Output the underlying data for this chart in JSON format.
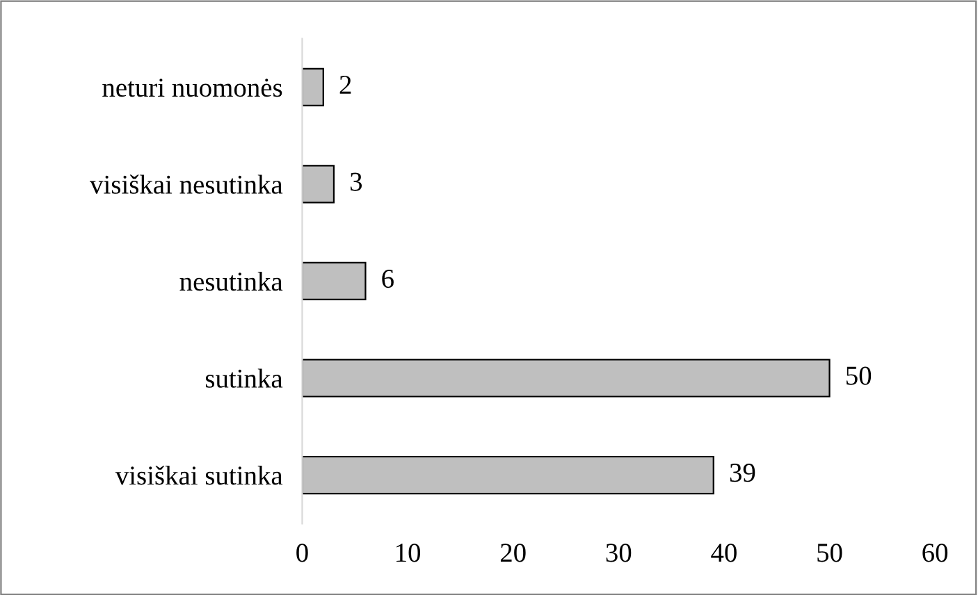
{
  "chart_data": {
    "type": "bar",
    "orientation": "horizontal",
    "categories": [
      "neturi nuomonės",
      "visiškai nesutinka",
      "nesutinka",
      "sutinka",
      "visiškai sutinka"
    ],
    "values": [
      2,
      3,
      6,
      50,
      39
    ],
    "color": "#bfbfbf",
    "xlim": [
      0,
      60
    ],
    "xticks": [
      0,
      10,
      20,
      30,
      40,
      50,
      60
    ],
    "data_labels": true,
    "grid": false,
    "legend": false
  }
}
